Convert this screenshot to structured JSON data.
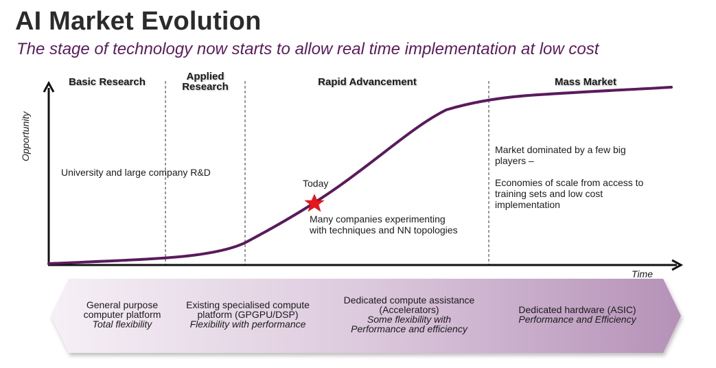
{
  "header": {
    "title": "AI Market Evolution",
    "subtitle": "The stage of technology now starts to allow real time implementation at low cost"
  },
  "axes": {
    "y_label": "Opportunity",
    "x_label": "Time"
  },
  "phases": [
    {
      "label": "Basic Research"
    },
    {
      "label_lines": [
        "Applied",
        "Research"
      ]
    },
    {
      "label": "Rapid Advancement"
    },
    {
      "label": "Mass Market"
    }
  ],
  "notes": {
    "basic_research": "University and large company R&D",
    "rapid_advancement": [
      "Many companies experimenting",
      "with techniques and NN topologies"
    ],
    "mass_market": [
      "Market dominated by a few big",
      "players –",
      "",
      "Economies of scale from access to",
      "training sets and low cost",
      "implementation"
    ]
  },
  "marker": {
    "label": "Today",
    "color": "#e8151b"
  },
  "band": [
    {
      "line1": "General purpose",
      "line2": "computer platform",
      "italic": "Total flexibility"
    },
    {
      "line1": "Existing specialised compute",
      "line2": "platform (GPGPU/DSP)",
      "italic": "Flexibility with performance"
    },
    {
      "line1": "Dedicated compute assistance",
      "line2": "(Accelerators)",
      "italic1": "Some flexibility with",
      "italic2": "Performance and efficiency"
    },
    {
      "line1": "Dedicated hardware (ASIC)",
      "italic": "Performance and Efficiency"
    }
  ],
  "colors": {
    "curve": "#5a1b5c",
    "title": "#2b2b2b",
    "subtitle": "#5a1b5c",
    "band_light": "#f6f0f6",
    "band_dark": "#b591b8"
  }
}
